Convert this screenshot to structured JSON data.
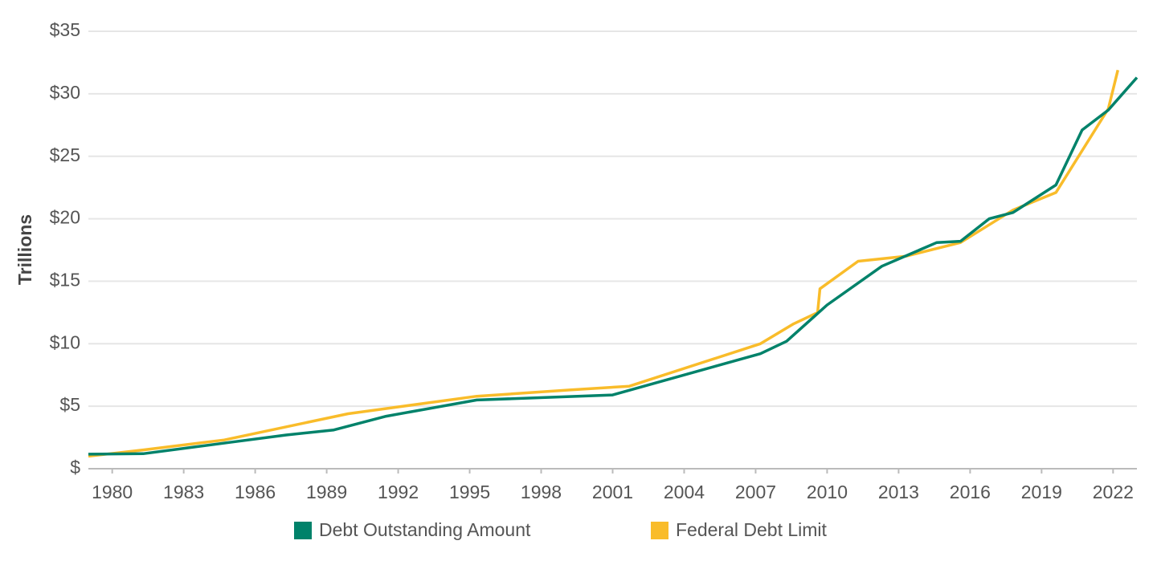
{
  "chart_data": {
    "type": "line",
    "y_label": "Trillions",
    "xlim": [
      1979,
      2023
    ],
    "xticks": [
      1980,
      1983,
      1986,
      1989,
      1992,
      1995,
      1998,
      2001,
      2004,
      2007,
      2010,
      2013,
      2016,
      2019,
      2022
    ],
    "ylim": [
      0,
      35
    ],
    "yticks": [
      {
        "value": 0,
        "label": "$"
      },
      {
        "value": 5,
        "label": "$5"
      },
      {
        "value": 10,
        "label": "$10"
      },
      {
        "value": 15,
        "label": "$15"
      },
      {
        "value": 20,
        "label": "$20"
      },
      {
        "value": 25,
        "label": "$25"
      },
      {
        "value": 30,
        "label": "$30"
      },
      {
        "value": 35,
        "label": "$35"
      }
    ],
    "grid": true,
    "legend": "bottom",
    "series": [
      {
        "name": "Debt Outstanding Amount",
        "color": "#00826a",
        "x": [
          1979.0,
          1981.3,
          1983.4,
          1984.9,
          1987.3,
          1989.3,
          1991.5,
          1995.3,
          2001.0,
          2007.2,
          2008.3,
          2010.0,
          2012.3,
          2014.6,
          2015.6,
          2016.8,
          2017.8,
          2019.6,
          2020.7,
          2021.8,
          2023.0
        ],
        "values": [
          1.16,
          1.2,
          1.73,
          2.1,
          2.7,
          3.1,
          4.2,
          5.5,
          5.9,
          9.2,
          10.2,
          13.1,
          16.2,
          18.1,
          18.2,
          20.0,
          20.5,
          22.7,
          27.1,
          28.7,
          31.3
        ]
      },
      {
        "name": "Federal Debt Limit",
        "color": "#f9bc2a",
        "x": [
          1979.0,
          1981.3,
          1984.7,
          1989.9,
          1995.3,
          1999.2,
          2001.7,
          2007.2,
          2008.6,
          2009.6,
          2009.7,
          2011.3,
          2013.3,
          2015.6,
          2017.8,
          2019.6,
          2021.8,
          2022.2
        ],
        "values": [
          1.0,
          1.5,
          2.3,
          4.4,
          5.8,
          6.3,
          6.6,
          10.0,
          11.6,
          12.5,
          14.4,
          16.6,
          17.0,
          18.1,
          20.7,
          22.1,
          28.8,
          31.9
        ]
      }
    ]
  }
}
